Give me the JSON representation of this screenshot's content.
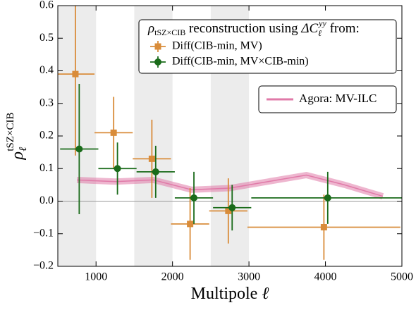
{
  "chart_data": {
    "type": "errorbar",
    "xlabel": {
      "text": "Multipole ",
      "ell": "ℓ"
    },
    "ylabel": {
      "rho": "ρ",
      "sub": "ℓ",
      "sup": "tSZ×CIB"
    },
    "legend_title": {
      "rho": "ρ",
      "rho_sub": "tSZ×CIB",
      "mid": " reconstruction using ",
      "delta": "ΔC",
      "delta_sub": "ℓ",
      "delta_sup": "yy",
      "end": " from:"
    },
    "xlim": [
      500,
      5000
    ],
    "ylim": [
      -0.2,
      0.6
    ],
    "xticks": [
      1000,
      2000,
      3000,
      4000,
      5000
    ],
    "yticks": [
      {
        "value": -0.2,
        "label": "−0.2"
      },
      {
        "value": -0.1,
        "label": "−0.1"
      },
      {
        "value": 0,
        "label": "0.0"
      },
      0.1,
      0.2,
      0.3,
      0.4,
      0.5,
      0.6
    ],
    "shaded_bands": [
      [
        500,
        1000
      ],
      [
        1500,
        2000
      ],
      [
        2500,
        3000
      ]
    ],
    "series": [
      {
        "name": "Diff(CIB-min, MV)",
        "color": "#d98c3a",
        "marker": "square",
        "x": [
          730,
          1230,
          1730,
          2230,
          2730,
          3980
        ],
        "values": [
          0.39,
          0.21,
          0.13,
          -0.07,
          -0.03,
          -0.08
        ],
        "errors": [
          0.25,
          0.11,
          0.12,
          0.11,
          0.1,
          0.1
        ],
        "xerr": [
          250,
          250,
          250,
          250,
          250,
          1000
        ]
      },
      {
        "name": "Diff(CIB-min, MV×CIB-min)",
        "color": "#1a6b1a",
        "marker": "circle",
        "x": [
          780,
          1280,
          1780,
          2280,
          2780,
          4030
        ],
        "values": [
          0.16,
          0.1,
          0.09,
          0.01,
          -0.02,
          0.01
        ],
        "errors": [
          0.2,
          0.08,
          0.08,
          0.08,
          0.07,
          0.08
        ],
        "xerr": [
          250,
          250,
          250,
          250,
          250,
          1000
        ]
      }
    ],
    "model": {
      "name": "Agora: MV-ILC",
      "color": "#e07aa8",
      "x": [
        750,
        1250,
        1750,
        2250,
        2750,
        3250,
        3750,
        4250,
        4750
      ],
      "values": [
        0.065,
        0.06,
        0.065,
        0.035,
        0.04,
        0.06,
        0.08,
        0.05,
        0.015
      ]
    }
  }
}
